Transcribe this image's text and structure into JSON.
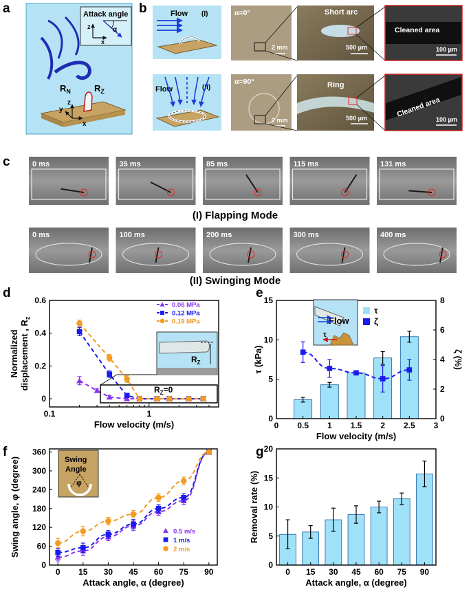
{
  "panels": {
    "a": {
      "label": "a",
      "attack_angle_label": "Attack angle",
      "alpha": "α",
      "axis_z": "z",
      "axis_x": "x",
      "axis_y": "y",
      "rn": "R",
      "rn_sub": "N",
      "rz": "R",
      "rz_sub": "Z"
    },
    "b": {
      "label": "b",
      "row1": {
        "flow": "Flow",
        "mode": "(I)",
        "alpha": "α=0°",
        "scale1": "2 mm",
        "annot": "Short arc",
        "scale2": "500 μm",
        "clean": "Cleaned area",
        "scale3": "100 μm"
      },
      "row2": {
        "flow": "Flow",
        "mode": "(II)",
        "alpha": "α=90°",
        "scale1": "2 mm",
        "annot": "Ring",
        "scale2": "500 μm",
        "clean": "Cleaned area",
        "scale3": "100 μm"
      }
    },
    "c": {
      "label": "c",
      "row1_times": [
        "0 ms",
        "35 ms",
        "85 ms",
        "115 ms",
        "131 ms"
      ],
      "row1_mode": "(I) Flapping Mode",
      "row2_times": [
        "0 ms",
        "100 ms",
        "200 ms",
        "300 ms",
        "400 ms"
      ],
      "row2_mode": "(II) Swinging Mode"
    },
    "d": {
      "label": "d",
      "inset_rz": "R",
      "inset_rz_sub": "Z",
      "inset_rz0": "R",
      "inset_rz0_sub": "Z",
      "inset_rz0_eq": "=0"
    },
    "e": {
      "label": "e",
      "inset_flow": "Flow",
      "inset_tau": "τ"
    },
    "f": {
      "label": "f",
      "inset_title1": "Swing",
      "inset_title2": "Angle",
      "inset_phi": "φ"
    },
    "g": {
      "label": "g"
    }
  },
  "chart_data": [
    {
      "id": "d",
      "type": "scatter",
      "xlabel": "Flow velocity (m/s)",
      "ylabel": "Normalized displacement , R",
      "ylabel_sub": "z",
      "xscale": "log",
      "xlim": [
        0.1,
        5
      ],
      "ylim": [
        -0.05,
        0.6
      ],
      "xticks": [
        {
          "v": 0.1,
          "t": "0.1"
        },
        {
          "v": 1,
          "t": "1"
        }
      ],
      "yticks": [
        {
          "v": 0,
          "t": "0"
        },
        {
          "v": 0.2,
          "t": "0.2"
        },
        {
          "v": 0.4,
          "t": "0.4"
        },
        {
          "v": 0.6,
          "t": "0.6"
        }
      ],
      "legend_position": "top-right",
      "series": [
        {
          "name": "0.06 MPa",
          "color": "#8833ee",
          "marker": "triangle",
          "x": [
            0.2,
            0.3,
            0.4,
            0.6,
            0.8,
            1.2,
            1.6,
            2.5,
            3.5
          ],
          "y": [
            0.11,
            0.05,
            0.01,
            0,
            0,
            0,
            0,
            0,
            0
          ],
          "err": [
            0.025,
            0.01,
            0.01,
            0,
            0,
            0,
            0,
            0,
            0
          ]
        },
        {
          "name": "0.12 MPa",
          "color": "#1a1aee",
          "marker": "square",
          "x": [
            0.2,
            0.4,
            0.6,
            0.8,
            1.2,
            1.6,
            2.5,
            3.5
          ],
          "y": [
            0.41,
            0.15,
            0.02,
            0,
            0,
            0,
            0,
            0
          ],
          "err": [
            0.025,
            0.02,
            0.01,
            0,
            0,
            0,
            0,
            0
          ]
        },
        {
          "name": "0.19 MPa",
          "color": "#f39a22",
          "marker": "circle",
          "x": [
            0.2,
            0.4,
            0.6,
            0.8,
            1.2,
            1.6,
            2.5,
            3.5
          ],
          "y": [
            0.46,
            0.25,
            0.12,
            0,
            0,
            0,
            0,
            0
          ],
          "err": [
            0.02,
            0.02,
            0.02,
            0,
            0,
            0,
            0,
            0
          ]
        }
      ]
    },
    {
      "id": "e",
      "type": "bar",
      "xlabel": "Flow velocity (m/s)",
      "ylabel": "τ (kPa)",
      "ylabel_right": "ζ (%)",
      "xlim": [
        0,
        3
      ],
      "ylim": [
        0,
        15
      ],
      "ylim_right": [
        0,
        8
      ],
      "xticks": [
        {
          "v": 0,
          "t": "0"
        },
        {
          "v": 0.5,
          "t": "0.5"
        },
        {
          "v": 1,
          "t": "1"
        },
        {
          "v": 1.5,
          "t": "1.5"
        },
        {
          "v": 2,
          "t": "2"
        },
        {
          "v": 2.5,
          "t": "2.5"
        },
        {
          "v": 3,
          "t": "3"
        }
      ],
      "yticks": [
        {
          "v": 0,
          "t": "0"
        },
        {
          "v": 5,
          "t": "5"
        },
        {
          "v": 10,
          "t": "10"
        },
        {
          "v": 15,
          "t": "15"
        }
      ],
      "yticks_right": [
        {
          "v": 0,
          "t": "0"
        },
        {
          "v": 2,
          "t": "2"
        },
        {
          "v": 4,
          "t": "4"
        },
        {
          "v": 6,
          "t": "6"
        },
        {
          "v": 8,
          "t": "8"
        }
      ],
      "legend_position": "top-right",
      "bars": {
        "name": "τ",
        "color": "#9ee1f8",
        "x": [
          0.5,
          1,
          1.5,
          2,
          2.5
        ],
        "values": [
          2.4,
          4.3,
          5.8,
          7.7,
          10.4
        ],
        "err": [
          0.3,
          0.3,
          0.2,
          0.8,
          0.7
        ]
      },
      "series": [
        {
          "name": "ζ",
          "color": "#1a1aee",
          "marker": "square",
          "axis": "right",
          "x": [
            0.5,
            1,
            1.5,
            2,
            2.5
          ],
          "y": [
            4.5,
            3.4,
            3.1,
            2.7,
            3.3
          ],
          "err": [
            0.7,
            0.6,
            0.1,
            0.9,
            0.7
          ]
        }
      ]
    },
    {
      "id": "f",
      "type": "scatter",
      "xlabel": "Attack angle, α (degree)",
      "ylabel": "Swing angle, φ (degree)",
      "xlim": [
        -5,
        95
      ],
      "ylim": [
        0,
        370
      ],
      "xticks": [
        {
          "v": 0,
          "t": "0"
        },
        {
          "v": 15,
          "t": "15"
        },
        {
          "v": 30,
          "t": "30"
        },
        {
          "v": 45,
          "t": "45"
        },
        {
          "v": 60,
          "t": "60"
        },
        {
          "v": 75,
          "t": "75"
        },
        {
          "v": 90,
          "t": "90"
        }
      ],
      "yticks": [
        {
          "v": 0,
          "t": "0"
        },
        {
          "v": 60,
          "t": "60"
        },
        {
          "v": 120,
          "t": "120"
        },
        {
          "v": 180,
          "t": "180"
        },
        {
          "v": 240,
          "t": "240"
        },
        {
          "v": 300,
          "t": "300"
        },
        {
          "v": 360,
          "t": "360"
        }
      ],
      "legend_position": "bottom-right",
      "series": [
        {
          "name": "0.5 m/s",
          "color": "#8833ee",
          "marker": "triangle",
          "x": [
            0,
            15,
            30,
            45,
            60,
            75,
            90
          ],
          "y": [
            25,
            45,
            90,
            125,
            170,
            205,
            360
          ],
          "err": [
            12,
            15,
            12,
            15,
            12,
            12,
            0
          ]
        },
        {
          "name": "1 m/s",
          "color": "#1a1aee",
          "marker": "square",
          "x": [
            0,
            15,
            30,
            45,
            60,
            75,
            90
          ],
          "y": [
            40,
            55,
            98,
            130,
            180,
            215,
            360
          ],
          "err": [
            12,
            15,
            12,
            15,
            12,
            12,
            0
          ]
        },
        {
          "name": "2 m/s",
          "color": "#f39a22",
          "marker": "circle",
          "x": [
            0,
            15,
            30,
            45,
            60,
            75,
            90
          ],
          "y": [
            70,
            108,
            140,
            162,
            215,
            268,
            360
          ],
          "err": [
            15,
            15,
            12,
            12,
            12,
            12,
            0
          ]
        }
      ]
    },
    {
      "id": "g",
      "type": "bar",
      "xlabel": "Attack angle, α (degree)",
      "ylabel": "Removal rate (%)",
      "ylim": [
        0,
        20
      ],
      "categories": [
        "0",
        "15",
        "30",
        "45",
        "60",
        "75",
        "90"
      ],
      "yticks": [
        {
          "v": 0,
          "t": "0"
        },
        {
          "v": 5,
          "t": "5"
        },
        {
          "v": 10,
          "t": "10"
        },
        {
          "v": 15,
          "t": "15"
        },
        {
          "v": 20,
          "t": "20"
        }
      ],
      "values": [
        5.3,
        5.7,
        7.8,
        8.7,
        10.0,
        11.4,
        15.7
      ],
      "err": [
        2.5,
        1.1,
        2.0,
        1.5,
        1.0,
        1.0,
        2.2
      ],
      "color": "#9ee1f8"
    }
  ]
}
